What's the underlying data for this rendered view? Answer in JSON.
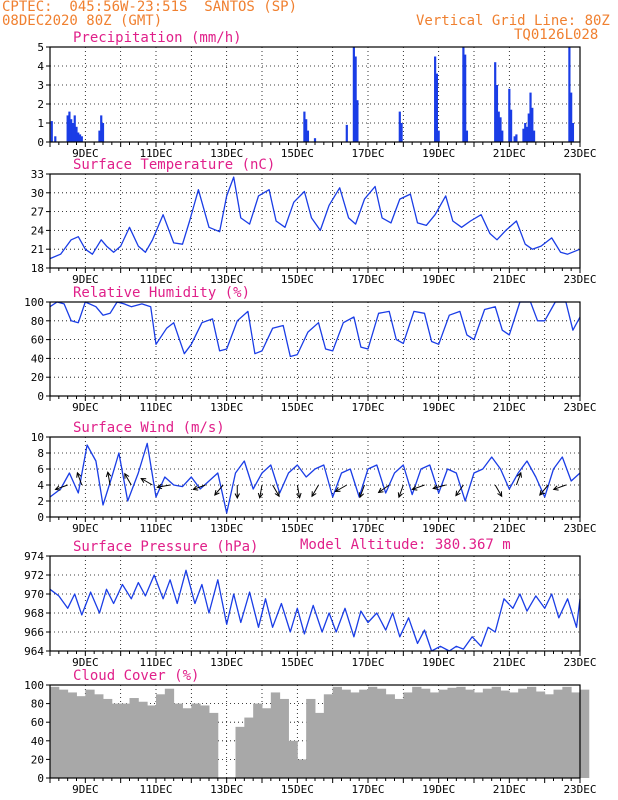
{
  "header": {
    "station": "CPTEC:  045:56W-23:51S  SANTOS (SP)",
    "run": "08DEC2020 80Z (GMT)",
    "grid_note": "Vertical Grid Line: 80Z",
    "model": "TQ0126L028",
    "altitude_note": "Model Altitude: 380.367 m"
  },
  "colors": {
    "accent_title": "#e0208a",
    "header": "#f08030",
    "series": "#1a3de6",
    "cloud": "#a8a8a8",
    "grid": "#000000"
  },
  "chart_data": [
    {
      "type": "bar",
      "title": "Precipitation (mm/h)",
      "ylim": [
        0,
        5
      ],
      "yticks": [
        0,
        1,
        2,
        3,
        4,
        5
      ],
      "xlim": [
        8.0,
        23.0
      ],
      "xticks": [
        9,
        11,
        13,
        15,
        17,
        19,
        21,
        23
      ],
      "xtick_labels": [
        "9DEC",
        "11DEC",
        "13DEC",
        "15DEC",
        "17DEC",
        "19DEC",
        "21DEC",
        "23DEC"
      ],
      "x": [
        8.05,
        8.15,
        8.5,
        8.55,
        8.6,
        8.65,
        8.7,
        8.75,
        8.8,
        8.85,
        8.9,
        9.4,
        9.45,
        9.5,
        15.2,
        15.25,
        15.3,
        15.5,
        16.4,
        16.6,
        16.65,
        16.7,
        17.9,
        17.95,
        18.9,
        18.95,
        19.0,
        19.7,
        19.75,
        19.8,
        20.6,
        20.65,
        20.7,
        20.75,
        20.8,
        21.0,
        21.05,
        21.15,
        21.2,
        21.4,
        21.45,
        21.5,
        21.55,
        21.6,
        21.65,
        21.7,
        22.7,
        22.75,
        22.8
      ],
      "values": [
        1.1,
        0.3,
        1.4,
        1.6,
        1.2,
        1.0,
        1.4,
        0.8,
        0.5,
        0.4,
        0.3,
        0.6,
        1.4,
        1.0,
        1.6,
        1.2,
        0.6,
        0.2,
        0.9,
        5.0,
        4.5,
        2.2,
        1.6,
        1.0,
        4.5,
        3.6,
        0.6,
        5.0,
        4.6,
        0.6,
        4.2,
        3.0,
        1.6,
        1.3,
        0.6,
        2.8,
        1.7,
        0.3,
        0.4,
        0.7,
        1.0,
        0.8,
        1.5,
        2.6,
        1.8,
        0.6,
        5.0,
        2.6,
        1.0
      ]
    },
    {
      "type": "line",
      "title": "Surface Temperature (nC)",
      "ylim": [
        18,
        33
      ],
      "yticks": [
        18,
        21,
        24,
        27,
        30,
        33
      ],
      "xlim": [
        8.0,
        23.0
      ],
      "xticks": [
        9,
        11,
        13,
        15,
        17,
        19,
        21,
        23
      ],
      "xtick_labels": [
        "9DEC",
        "11DEC",
        "13DEC",
        "15DEC",
        "17DEC",
        "19DEC",
        "21DEC",
        "23DEC"
      ],
      "x": [
        8.0,
        8.3,
        8.6,
        8.8,
        9.0,
        9.2,
        9.45,
        9.6,
        9.8,
        10.0,
        10.25,
        10.5,
        10.7,
        10.9,
        11.2,
        11.5,
        11.75,
        11.95,
        12.2,
        12.5,
        12.8,
        13.0,
        13.2,
        13.4,
        13.65,
        13.9,
        14.2,
        14.4,
        14.65,
        14.9,
        15.2,
        15.4,
        15.65,
        15.9,
        16.2,
        16.45,
        16.65,
        16.9,
        17.2,
        17.4,
        17.65,
        17.9,
        18.2,
        18.4,
        18.65,
        18.9,
        19.2,
        19.4,
        19.65,
        19.9,
        20.2,
        20.45,
        20.65,
        20.9,
        21.2,
        21.45,
        21.65,
        21.9,
        22.2,
        22.45,
        22.65,
        23.0
      ],
      "values": [
        19.5,
        20.2,
        22.5,
        23.0,
        21.0,
        20.2,
        22.5,
        21.5,
        20.5,
        21.5,
        24.5,
        21.5,
        20.5,
        22.5,
        26.5,
        22.0,
        21.8,
        25.5,
        30.5,
        24.5,
        23.8,
        29.5,
        32.5,
        26.0,
        25.0,
        29.5,
        30.5,
        25.5,
        24.5,
        28.5,
        30.2,
        26.0,
        24.0,
        28.0,
        30.8,
        26.0,
        25.0,
        29.0,
        31.0,
        26.0,
        25.2,
        29.0,
        29.8,
        25.2,
        24.8,
        26.5,
        29.5,
        25.5,
        24.5,
        25.5,
        26.5,
        23.5,
        22.5,
        24.0,
        25.5,
        21.8,
        21.0,
        21.5,
        22.8,
        20.5,
        20.2,
        21.0
      ]
    },
    {
      "type": "line",
      "title": "Relative Humidity (%)",
      "ylim": [
        0,
        100
      ],
      "yticks": [
        0,
        20,
        40,
        60,
        80,
        100
      ],
      "xlim": [
        8.0,
        23.0
      ],
      "xticks": [
        9,
        11,
        13,
        15,
        17,
        19,
        21,
        23
      ],
      "xtick_labels": [
        "9DEC",
        "11DEC",
        "13DEC",
        "15DEC",
        "17DEC",
        "19DEC",
        "21DEC",
        "23DEC"
      ],
      "x": [
        8.0,
        8.2,
        8.4,
        8.6,
        8.8,
        9.0,
        9.3,
        9.5,
        9.7,
        9.9,
        10.1,
        10.3,
        10.6,
        10.85,
        11.0,
        11.3,
        11.5,
        11.8,
        12.0,
        12.3,
        12.6,
        12.8,
        13.0,
        13.3,
        13.6,
        13.8,
        14.0,
        14.3,
        14.6,
        14.8,
        15.0,
        15.3,
        15.6,
        15.8,
        16.0,
        16.3,
        16.6,
        16.8,
        17.0,
        17.3,
        17.6,
        17.8,
        18.0,
        18.3,
        18.6,
        18.8,
        19.0,
        19.3,
        19.6,
        19.8,
        20.0,
        20.3,
        20.6,
        20.8,
        21.0,
        21.3,
        21.6,
        21.8,
        22.0,
        22.3,
        22.6,
        22.8,
        23.0
      ],
      "values": [
        95,
        100,
        98,
        80,
        78,
        100,
        95,
        86,
        88,
        100,
        98,
        95,
        98,
        95,
        55,
        72,
        78,
        45,
        55,
        78,
        82,
        48,
        50,
        80,
        90,
        45,
        48,
        72,
        75,
        42,
        44,
        68,
        78,
        50,
        48,
        78,
        84,
        52,
        50,
        88,
        90,
        60,
        56,
        90,
        88,
        58,
        55,
        86,
        90,
        65,
        60,
        92,
        95,
        70,
        65,
        100,
        100,
        80,
        80,
        100,
        100,
        70,
        84
      ]
    },
    {
      "type": "line",
      "title": "Surface Wind (m/s)",
      "ylim": [
        0,
        10
      ],
      "yticks": [
        0,
        2,
        4,
        6,
        8,
        10
      ],
      "xlim": [
        8.0,
        23.0
      ],
      "xticks": [
        9,
        11,
        13,
        15,
        17,
        19,
        21,
        23
      ],
      "xtick_labels": [
        "9DEC",
        "11DEC",
        "13DEC",
        "15DEC",
        "17DEC",
        "19DEC",
        "21DEC",
        "23DEC"
      ],
      "x": [
        8.0,
        8.3,
        8.55,
        8.8,
        9.05,
        9.3,
        9.5,
        9.75,
        9.95,
        10.2,
        10.5,
        10.75,
        11.0,
        11.25,
        11.5,
        11.75,
        12.0,
        12.25,
        12.5,
        12.75,
        13.0,
        13.25,
        13.5,
        13.75,
        14.0,
        14.25,
        14.5,
        14.75,
        15.0,
        15.25,
        15.5,
        15.75,
        16.0,
        16.25,
        16.5,
        16.75,
        17.0,
        17.25,
        17.5,
        17.75,
        18.0,
        18.25,
        18.5,
        18.75,
        19.0,
        19.25,
        19.5,
        19.75,
        20.0,
        20.25,
        20.5,
        20.75,
        21.0,
        21.25,
        21.5,
        21.75,
        22.0,
        22.25,
        22.5,
        22.75,
        23.0
      ],
      "values": [
        2.5,
        3.5,
        5.5,
        3.0,
        9.0,
        7.0,
        1.5,
        5.0,
        8.0,
        2.0,
        5.5,
        9.2,
        2.5,
        5.0,
        4.0,
        3.8,
        5.0,
        3.5,
        4.5,
        5.5,
        0.5,
        5.5,
        7.0,
        3.5,
        5.5,
        6.5,
        3.0,
        5.5,
        6.5,
        5.0,
        6.0,
        6.5,
        2.5,
        5.5,
        6.0,
        2.5,
        6.0,
        6.5,
        3.0,
        5.5,
        6.5,
        2.8,
        6.0,
        6.5,
        3.0,
        6.0,
        5.5,
        2.0,
        5.5,
        6.0,
        7.5,
        6.0,
        3.5,
        5.5,
        7.0,
        5.0,
        2.5,
        6.0,
        7.5,
        4.5,
        5.5
      ],
      "arrow_x": [
        8.5,
        8.9,
        9.7,
        10.3,
        10.9,
        11.4,
        12.4,
        12.9,
        13.3,
        14.0,
        14.3,
        15.0,
        15.6,
        16.4,
        16.9,
        17.6,
        18.0,
        18.6,
        19.2,
        19.7,
        20.6,
        21.2,
        22.1,
        22.6
      ],
      "arrow_dir_deg": [
        200,
        110,
        100,
        120,
        150,
        190,
        200,
        230,
        270,
        260,
        300,
        280,
        240,
        210,
        250,
        215,
        250,
        200,
        195,
        235,
        300,
        70,
        230,
        200
      ]
    },
    {
      "type": "line",
      "title": "Surface Pressure (hPa)",
      "ylim": [
        964,
        974
      ],
      "yticks": [
        964,
        966,
        968,
        970,
        972,
        974
      ],
      "xlim": [
        8.0,
        23.0
      ],
      "xticks": [
        9,
        11,
        13,
        15,
        17,
        19,
        21,
        23
      ],
      "xtick_labels": [
        "9DEC",
        "11DEC",
        "13DEC",
        "15DEC",
        "17DEC",
        "19DEC",
        "21DEC",
        "23DEC"
      ],
      "x": [
        8.0,
        8.25,
        8.5,
        8.7,
        8.9,
        9.15,
        9.4,
        9.6,
        9.8,
        10.05,
        10.3,
        10.5,
        10.7,
        10.95,
        11.2,
        11.4,
        11.6,
        11.85,
        12.1,
        12.3,
        12.5,
        12.75,
        13.0,
        13.2,
        13.4,
        13.65,
        13.9,
        14.1,
        14.3,
        14.55,
        14.8,
        15.0,
        15.2,
        15.45,
        15.7,
        15.9,
        16.1,
        16.35,
        16.6,
        16.8,
        17.0,
        17.25,
        17.5,
        17.7,
        17.9,
        18.15,
        18.4,
        18.6,
        18.8,
        19.05,
        19.3,
        19.5,
        19.7,
        19.95,
        20.2,
        20.4,
        20.6,
        20.85,
        21.1,
        21.3,
        21.5,
        21.75,
        22.0,
        22.2,
        22.4,
        22.65,
        22.9,
        23.0
      ],
      "values": [
        970.5,
        969.8,
        968.5,
        970.0,
        967.8,
        970.2,
        968.0,
        970.5,
        969.0,
        971.0,
        969.5,
        971.2,
        969.8,
        972.0,
        969.5,
        971.5,
        969.0,
        972.5,
        969.0,
        971.0,
        968.0,
        971.5,
        966.8,
        970.0,
        967.0,
        970.2,
        966.5,
        969.5,
        966.5,
        969.0,
        966.0,
        968.5,
        965.8,
        968.8,
        966.0,
        968.0,
        966.0,
        968.5,
        965.5,
        968.2,
        967.0,
        968.0,
        966.2,
        968.0,
        965.5,
        967.5,
        964.8,
        966.2,
        963.8,
        964.5,
        963.8,
        964.5,
        964.2,
        965.5,
        964.5,
        966.5,
        966.0,
        969.5,
        968.5,
        970.0,
        968.2,
        969.8,
        968.5,
        970.0,
        967.5,
        969.5,
        966.5,
        969.5
      ]
    },
    {
      "type": "bar",
      "title": "Cloud Cover (%)",
      "ylim": [
        0,
        100
      ],
      "yticks": [
        0,
        20,
        40,
        60,
        80,
        100
      ],
      "xlim": [
        8.0,
        23.0
      ],
      "xticks": [
        9,
        11,
        13,
        15,
        17,
        19,
        21,
        23
      ],
      "xtick_labels": [
        "9DEC",
        "11DEC",
        "13DEC",
        "15DEC",
        "17DEC",
        "19DEC",
        "21DEC",
        "23DEC"
      ],
      "x": [
        8.0,
        8.25,
        8.5,
        8.75,
        9.0,
        9.25,
        9.5,
        9.75,
        10.0,
        10.25,
        10.5,
        10.75,
        11.0,
        11.25,
        11.5,
        11.75,
        12.0,
        12.25,
        12.5,
        12.75,
        13.0,
        13.25,
        13.5,
        13.75,
        14.0,
        14.25,
        14.5,
        14.75,
        15.0,
        15.25,
        15.5,
        15.75,
        16.0,
        16.25,
        16.5,
        16.75,
        17.0,
        17.25,
        17.5,
        17.75,
        18.0,
        18.25,
        18.5,
        18.75,
        19.0,
        19.25,
        19.5,
        19.75,
        20.0,
        20.25,
        20.5,
        20.75,
        21.0,
        21.25,
        21.5,
        21.75,
        22.0,
        22.25,
        22.5,
        22.75,
        23.0
      ],
      "values": [
        98,
        95,
        92,
        88,
        95,
        90,
        85,
        80,
        80,
        86,
        82,
        78,
        90,
        96,
        80,
        75,
        80,
        78,
        70,
        0,
        0,
        55,
        65,
        80,
        75,
        92,
        85,
        40,
        20,
        85,
        70,
        90,
        98,
        95,
        92,
        95,
        98,
        96,
        90,
        85,
        92,
        98,
        96,
        92,
        95,
        97,
        98,
        95,
        92,
        96,
        98,
        94,
        92,
        96,
        98,
        93,
        90,
        95,
        98,
        92,
        95
      ]
    }
  ]
}
